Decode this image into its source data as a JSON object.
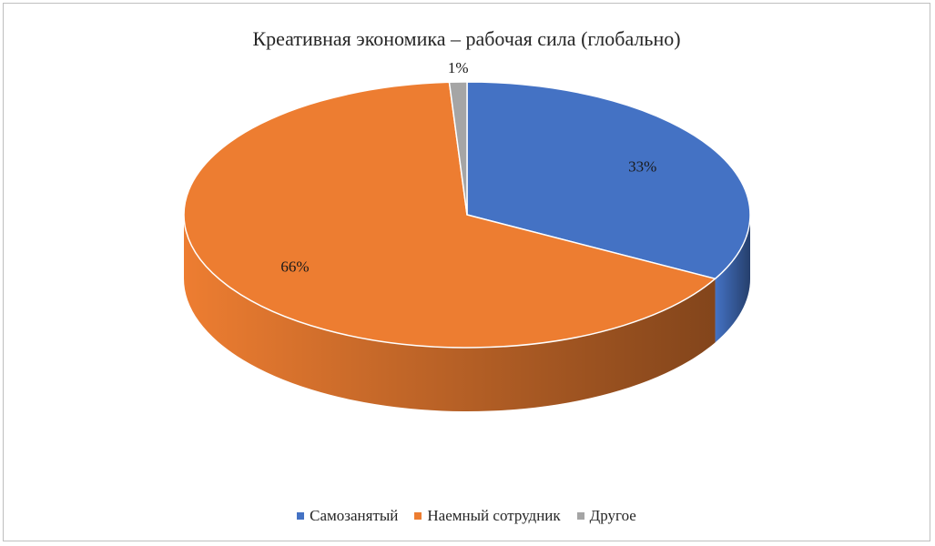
{
  "chart_data": {
    "type": "pie",
    "style": "3d",
    "title": "Креативная экономика – рабочая сила (глобально)",
    "categories": [
      "Самозанятый",
      "Наемный сотрудник",
      "Другое"
    ],
    "values": [
      33,
      66,
      1
    ],
    "data_labels": [
      "33%",
      "66%",
      "1%"
    ],
    "colors": [
      "#4472C4",
      "#ED7D31",
      "#A5A5A5"
    ],
    "side_colors": [
      "#1F3864",
      "#7A3F12",
      "#6E6E6E"
    ],
    "legend_position": "bottom"
  }
}
